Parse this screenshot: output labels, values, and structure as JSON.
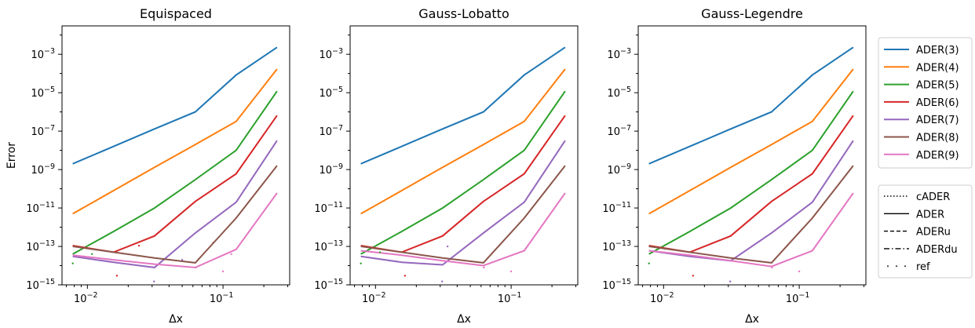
{
  "chart_data": [
    {
      "type": "line",
      "title": "Equispaced",
      "xlabel": "Δx",
      "ylabel": "Error",
      "xscale": "log",
      "yscale": "log",
      "xlim": [
        0.0065,
        0.31
      ],
      "ylim": [
        1e-15,
        0.03
      ],
      "xticks": [
        {
          "value": 0.01,
          "label": "10",
          "exp": "−2"
        },
        {
          "value": 0.1,
          "label": "10",
          "exp": "−1"
        }
      ],
      "yticks": [
        {
          "value": 1e-15,
          "label": "10",
          "exp": "−15"
        },
        {
          "value": 1e-13,
          "label": "10",
          "exp": "−13"
        },
        {
          "value": 1e-11,
          "label": "10",
          "exp": "−11"
        },
        {
          "value": 1e-09,
          "label": "10",
          "exp": "−9"
        },
        {
          "value": 1e-07,
          "label": "10",
          "exp": "−7"
        },
        {
          "value": 1e-05,
          "label": "10",
          "exp": "−5"
        },
        {
          "value": 0.001,
          "label": "10",
          "exp": "−3"
        }
      ],
      "x": [
        0.0078,
        0.0156,
        0.03125,
        0.0625,
        0.125,
        0.25
      ],
      "series": [
        {
          "name": "ADER(3)",
          "values": [
            2e-09,
            1.6e-08,
            1.3e-07,
            1e-06,
            8.3e-05,
            0.0023
          ]
        },
        {
          "name": "ADER(4)",
          "values": [
            5e-12,
            8e-11,
            1.3e-09,
            2e-08,
            3.2e-07,
            0.00017
          ]
        },
        {
          "name": "ADER(5)",
          "values": [
            4e-14,
            6e-13,
            1e-11,
            3e-10,
            1e-08,
            1.2e-05
          ]
        },
        {
          "name": "ADER(6)",
          "values": [
            1.1e-13,
            5e-14,
            3.5e-13,
            2.2e-11,
            6e-10,
            6.5e-07
          ]
        },
        {
          "name": "ADER(7)",
          "values": [
            3e-14,
            1.5e-14,
            8e-15,
            5e-13,
            2e-11,
            3.2e-08
          ]
        },
        {
          "name": "ADER(8)",
          "values": [
            1e-13,
            5e-14,
            2.5e-14,
            1.4e-14,
            3e-12,
            1.6e-09
          ]
        },
        {
          "name": "ADER(9)",
          "values": [
            3.5e-14,
            2e-14,
            1.2e-14,
            8e-15,
            7e-14,
            6e-11
          ]
        }
      ],
      "ref_points": [
        {
          "x": 0.0078,
          "y": 1.3e-14,
          "color": "#2ca02c"
        },
        {
          "x": 0.0108,
          "y": 4e-14,
          "color": "#2ca02c"
        },
        {
          "x": 0.0165,
          "y": 3e-15,
          "color": "#d62728"
        },
        {
          "x": 0.024,
          "y": 1.1e-13,
          "color": "#d62728"
        },
        {
          "x": 0.031,
          "y": 1.5e-15,
          "color": "#9467bd"
        },
        {
          "x": 0.05,
          "y": 2e-14,
          "color": "#9467bd"
        },
        {
          "x": 0.063,
          "y": 8e-15,
          "color": "#e377c2"
        },
        {
          "x": 0.085,
          "y": 1.6e-13,
          "color": "#8c564b"
        },
        {
          "x": 0.1,
          "y": 5e-15,
          "color": "#e377c2"
        },
        {
          "x": 0.115,
          "y": 4e-14,
          "color": "#e377c2"
        }
      ]
    },
    {
      "type": "line",
      "title": "Gauss-Lobatto",
      "xlabel": "Δx",
      "ylabel": "",
      "xscale": "log",
      "yscale": "log",
      "xlim": [
        0.0065,
        0.31
      ],
      "ylim": [
        1e-15,
        0.03
      ],
      "xticks": [
        {
          "value": 0.01,
          "label": "10",
          "exp": "−2"
        },
        {
          "value": 0.1,
          "label": "10",
          "exp": "−1"
        }
      ],
      "yticks": [
        {
          "value": 1e-15,
          "label": "10",
          "exp": "−15"
        },
        {
          "value": 1e-13,
          "label": "10",
          "exp": "−13"
        },
        {
          "value": 1e-11,
          "label": "10",
          "exp": "−11"
        },
        {
          "value": 1e-09,
          "label": "10",
          "exp": "−9"
        },
        {
          "value": 1e-07,
          "label": "10",
          "exp": "−7"
        },
        {
          "value": 1e-05,
          "label": "10",
          "exp": "−5"
        },
        {
          "value": 0.001,
          "label": "10",
          "exp": "−3"
        }
      ],
      "x": [
        0.0078,
        0.0156,
        0.03125,
        0.0625,
        0.125,
        0.25
      ],
      "series": [
        {
          "name": "ADER(3)",
          "values": [
            2e-09,
            1.6e-08,
            1.3e-07,
            1e-06,
            8.3e-05,
            0.0023
          ]
        },
        {
          "name": "ADER(4)",
          "values": [
            5e-12,
            8e-11,
            1.3e-09,
            2e-08,
            3.2e-07,
            0.00017
          ]
        },
        {
          "name": "ADER(5)",
          "values": [
            4e-14,
            6e-13,
            1e-11,
            3e-10,
            1e-08,
            1.2e-05
          ]
        },
        {
          "name": "ADER(6)",
          "values": [
            1.1e-13,
            5e-14,
            3.5e-13,
            2.2e-11,
            6e-10,
            6.5e-07
          ]
        },
        {
          "name": "ADER(7)",
          "values": [
            3e-14,
            1.5e-14,
            1.1e-14,
            5e-13,
            2e-11,
            3.2e-08
          ]
        },
        {
          "name": "ADER(8)",
          "values": [
            1e-13,
            5e-14,
            2.5e-14,
            1.4e-14,
            3e-12,
            1.6e-09
          ]
        },
        {
          "name": "ADER(9)",
          "values": [
            6e-14,
            3.5e-14,
            1.8e-14,
            1e-14,
            6e-14,
            6e-11
          ]
        }
      ],
      "ref_points": [
        {
          "x": 0.0078,
          "y": 1.3e-14,
          "color": "#2ca02c"
        },
        {
          "x": 0.0108,
          "y": 5e-14,
          "color": "#2ca02c"
        },
        {
          "x": 0.0165,
          "y": 3e-15,
          "color": "#d62728"
        },
        {
          "x": 0.031,
          "y": 1.5e-15,
          "color": "#9467bd"
        },
        {
          "x": 0.034,
          "y": 1e-13,
          "color": "#9467bd"
        },
        {
          "x": 0.063,
          "y": 8e-15,
          "color": "#e377c2"
        },
        {
          "x": 0.1,
          "y": 5e-15,
          "color": "#e377c2"
        }
      ]
    },
    {
      "type": "line",
      "title": "Gauss-Legendre",
      "xlabel": "Δx",
      "ylabel": "",
      "xscale": "log",
      "yscale": "log",
      "xlim": [
        0.0065,
        0.31
      ],
      "ylim": [
        1e-15,
        0.03
      ],
      "xticks": [
        {
          "value": 0.01,
          "label": "10",
          "exp": "−2"
        },
        {
          "value": 0.1,
          "label": "10",
          "exp": "−1"
        }
      ],
      "yticks": [
        {
          "value": 1e-15,
          "label": "10",
          "exp": "−15"
        },
        {
          "value": 1e-13,
          "label": "10",
          "exp": "−13"
        },
        {
          "value": 1e-11,
          "label": "10",
          "exp": "−11"
        },
        {
          "value": 1e-09,
          "label": "10",
          "exp": "−9"
        },
        {
          "value": 1e-07,
          "label": "10",
          "exp": "−7"
        },
        {
          "value": 1e-05,
          "label": "10",
          "exp": "−5"
        },
        {
          "value": 0.001,
          "label": "10",
          "exp": "−3"
        }
      ],
      "x": [
        0.0078,
        0.0156,
        0.03125,
        0.0625,
        0.125,
        0.25
      ],
      "series": [
        {
          "name": "ADER(3)",
          "values": [
            2e-09,
            1.6e-08,
            1.3e-07,
            1e-06,
            8.3e-05,
            0.0023
          ]
        },
        {
          "name": "ADER(4)",
          "values": [
            5e-12,
            8e-11,
            1.3e-09,
            2e-08,
            3.2e-07,
            0.00017
          ]
        },
        {
          "name": "ADER(5)",
          "values": [
            4e-14,
            6e-13,
            1e-11,
            3e-10,
            1e-08,
            1.2e-05
          ]
        },
        {
          "name": "ADER(6)",
          "values": [
            1.1e-13,
            5e-14,
            3.5e-13,
            2.2e-11,
            6e-10,
            6.5e-07
          ]
        },
        {
          "name": "ADER(7)",
          "values": [
            6e-14,
            3e-14,
            1.8e-14,
            5e-13,
            2e-11,
            3.2e-08
          ]
        },
        {
          "name": "ADER(8)",
          "values": [
            1e-13,
            5e-14,
            2.5e-14,
            1.4e-14,
            3e-12,
            1.6e-09
          ]
        },
        {
          "name": "ADER(9)",
          "values": [
            6e-14,
            3.5e-14,
            1.8e-14,
            9e-15,
            6e-14,
            6e-11
          ]
        }
      ],
      "ref_points": [
        {
          "x": 0.0078,
          "y": 1.3e-14,
          "color": "#2ca02c"
        },
        {
          "x": 0.0165,
          "y": 3e-15,
          "color": "#d62728"
        },
        {
          "x": 0.031,
          "y": 1.5e-15,
          "color": "#9467bd"
        },
        {
          "x": 0.063,
          "y": 8e-15,
          "color": "#e377c2"
        },
        {
          "x": 0.1,
          "y": 5e-15,
          "color": "#e377c2"
        }
      ]
    }
  ],
  "legend_orders": {
    "placement": "right",
    "entries": [
      {
        "label": "ADER(3)",
        "color": "#1f77b4"
      },
      {
        "label": "ADER(4)",
        "color": "#ff7f0e"
      },
      {
        "label": "ADER(5)",
        "color": "#2ca02c"
      },
      {
        "label": "ADER(6)",
        "color": "#d62728"
      },
      {
        "label": "ADER(7)",
        "color": "#9467bd"
      },
      {
        "label": "ADER(8)",
        "color": "#8c564b"
      },
      {
        "label": "ADER(9)",
        "color": "#e377c2"
      }
    ]
  },
  "legend_styles": {
    "placement": "right",
    "entries": [
      {
        "label": "cADER",
        "style": "dotted"
      },
      {
        "label": "ADER",
        "style": "solid"
      },
      {
        "label": "ADERu",
        "style": "dashed"
      },
      {
        "label": "ADERdu",
        "style": "dashdot"
      },
      {
        "label": "ref",
        "style": "points"
      }
    ]
  }
}
